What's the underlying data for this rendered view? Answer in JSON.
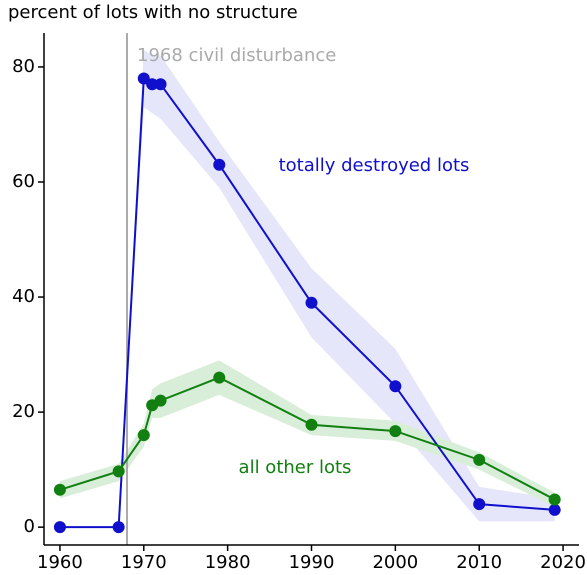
{
  "chart_data": {
    "type": "line",
    "title": "percent of lots with no structure",
    "x": [
      1960,
      1967,
      1970,
      1971,
      1972,
      1979,
      1990,
      2000,
      2010,
      2019
    ],
    "series": [
      {
        "name": "totally destroyed lots",
        "color": "#1010cc",
        "band_color": "#e6e6fb",
        "values": [
          0,
          0,
          78,
          77,
          77,
          63,
          39,
          24.5,
          4,
          3
        ],
        "lower": [
          0,
          0,
          73,
          72,
          71,
          59,
          33,
          18,
          1,
          1
        ],
        "upper": [
          0,
          0,
          83,
          82,
          82,
          67,
          45,
          31,
          7,
          5
        ]
      },
      {
        "name": "all other lots",
        "color": "#118011",
        "band_color": "#d8eed8",
        "values": [
          6.5,
          9.7,
          16,
          21.2,
          22,
          26,
          17.8,
          16.7,
          11.7,
          4.8
        ],
        "lower": [
          5,
          8,
          14,
          19,
          19,
          23,
          16,
          15,
          10,
          3.5
        ],
        "upper": [
          8,
          11,
          18,
          24,
          25,
          29,
          19.5,
          18.5,
          13,
          6
        ]
      }
    ],
    "event": {
      "x": 1968,
      "label": "1968 civil disturbance",
      "color": "#aaaaaa"
    },
    "xlim": [
      1958.1,
      2021.9
    ],
    "ylim": [
      -3.1,
      85.9
    ],
    "xticks": [
      1960,
      1970,
      1980,
      1990,
      2000,
      2010,
      2020
    ],
    "yticks": [
      0,
      20,
      40,
      60,
      80
    ]
  }
}
